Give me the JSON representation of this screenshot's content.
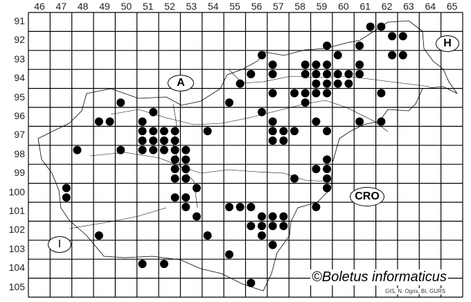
{
  "map": {
    "columns": [
      "46",
      "47",
      "48",
      "49",
      "50",
      "51",
      "52",
      "53",
      "54",
      "55",
      "56",
      "57",
      "58",
      "59",
      "60",
      "61",
      "62",
      "63",
      "64",
      "65"
    ],
    "rows": [
      "91",
      "92",
      "93",
      "94",
      "95",
      "96",
      "97",
      "98",
      "99",
      "100",
      "101",
      "102",
      "103",
      "104",
      "105"
    ],
    "regions": {
      "austria": "A",
      "hungary": "H",
      "italy": "I",
      "croatia": "CRO"
    },
    "copyright": "©Boletus informaticus",
    "credit": "GIS, N. Ogris, BI, GURS",
    "dot_color": "#000000",
    "records": [
      [
        61.75,
        91.75
      ],
      [
        62.25,
        91.75
      ],
      [
        62.75,
        92.25
      ],
      [
        63.25,
        92.25
      ],
      [
        59.75,
        92.75
      ],
      [
        61.25,
        92.75
      ],
      [
        62.75,
        93.25
      ],
      [
        63.25,
        93.25
      ],
      [
        60.25,
        93.25
      ],
      [
        56.75,
        93.25
      ],
      [
        57.25,
        93.75
      ],
      [
        58.75,
        93.75
      ],
      [
        59.25,
        93.75
      ],
      [
        59.75,
        93.75
      ],
      [
        61.25,
        93.75
      ],
      [
        56.25,
        94.25
      ],
      [
        57.25,
        94.25
      ],
      [
        58.75,
        94.25
      ],
      [
        59.25,
        94.25
      ],
      [
        59.75,
        94.25
      ],
      [
        60.25,
        94.25
      ],
      [
        60.75,
        94.25
      ],
      [
        61.25,
        94.25
      ],
      [
        55.75,
        94.75
      ],
      [
        59.25,
        94.75
      ],
      [
        59.75,
        94.75
      ],
      [
        60.25,
        94.75
      ],
      [
        60.75,
        94.75
      ],
      [
        57.25,
        95.25
      ],
      [
        58.25,
        95.25
      ],
      [
        58.75,
        95.25
      ],
      [
        59.25,
        95.25
      ],
      [
        59.75,
        95.25
      ],
      [
        62.25,
        95.25
      ],
      [
        50.25,
        95.75
      ],
      [
        55.25,
        95.75
      ],
      [
        58.75,
        95.75
      ],
      [
        51.75,
        96.25
      ],
      [
        56.75,
        96.25
      ],
      [
        49.25,
        96.75
      ],
      [
        49.75,
        96.75
      ],
      [
        51.25,
        96.75
      ],
      [
        57.25,
        96.75
      ],
      [
        59.25,
        96.75
      ],
      [
        61.25,
        96.75
      ],
      [
        62.25,
        96.75
      ],
      [
        51.25,
        97.25
      ],
      [
        51.75,
        97.25
      ],
      [
        52.25,
        97.25
      ],
      [
        52.75,
        97.25
      ],
      [
        54.25,
        97.25
      ],
      [
        57.25,
        97.25
      ],
      [
        57.75,
        97.25
      ],
      [
        58.25,
        97.25
      ],
      [
        59.75,
        97.25
      ],
      [
        51.25,
        97.75
      ],
      [
        51.75,
        97.75
      ],
      [
        52.25,
        97.75
      ],
      [
        52.75,
        97.75
      ],
      [
        57.25,
        97.75
      ],
      [
        57.75,
        97.75
      ],
      [
        48.25,
        98.25
      ],
      [
        50.25,
        98.25
      ],
      [
        51.25,
        98.25
      ],
      [
        51.75,
        98.25
      ],
      [
        52.25,
        98.25
      ],
      [
        52.75,
        98.25
      ],
      [
        53.25,
        98.25
      ],
      [
        52.75,
        98.75
      ],
      [
        53.25,
        98.75
      ],
      [
        59.75,
        98.75
      ],
      [
        52.75,
        99.25
      ],
      [
        53.25,
        99.25
      ],
      [
        59.25,
        99.25
      ],
      [
        59.75,
        99.25
      ],
      [
        52.75,
        99.75
      ],
      [
        53.25,
        99.75
      ],
      [
        58.25,
        99.75
      ],
      [
        59.75,
        99.75
      ],
      [
        47.75,
        100.25
      ],
      [
        53.75,
        100.25
      ],
      [
        59.75,
        100.25
      ],
      [
        47.75,
        100.75
      ],
      [
        52.75,
        100.75
      ],
      [
        53.25,
        100.75
      ],
      [
        53.25,
        101.25
      ],
      [
        55.25,
        101.25
      ],
      [
        55.75,
        101.25
      ],
      [
        56.25,
        101.25
      ],
      [
        59.25,
        101.25
      ],
      [
        53.75,
        101.75
      ],
      [
        56.75,
        101.75
      ],
      [
        57.25,
        101.75
      ],
      [
        57.75,
        101.75
      ],
      [
        56.25,
        102.25
      ],
      [
        56.75,
        102.25
      ],
      [
        57.25,
        102.25
      ],
      [
        57.75,
        102.25
      ],
      [
        49.25,
        102.75
      ],
      [
        54.25,
        102.75
      ],
      [
        56.75,
        102.75
      ],
      [
        57.25,
        103.25
      ],
      [
        55.25,
        103.75
      ],
      [
        51.25,
        104.25
      ],
      [
        52.25,
        104.25
      ],
      [
        56.25,
        105.25
      ]
    ]
  }
}
